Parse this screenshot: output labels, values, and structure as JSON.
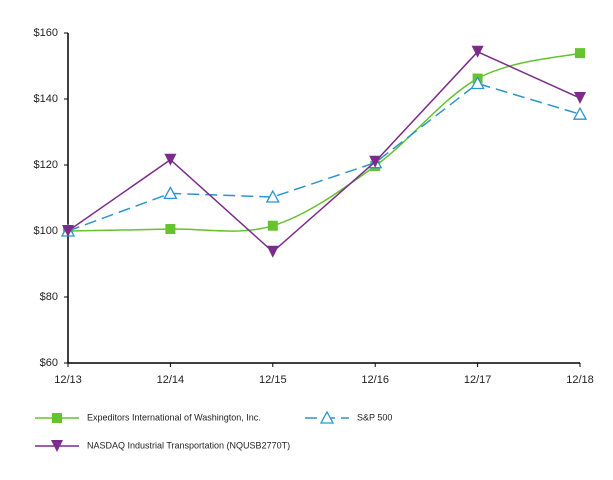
{
  "chart_data": {
    "type": "line",
    "categories": [
      "12/13",
      "12/14",
      "12/15",
      "12/16",
      "12/17",
      "12/18"
    ],
    "ylim": [
      60,
      160
    ],
    "yticks": [
      {
        "value": 60,
        "label": "$60"
      },
      {
        "value": 80,
        "label": "$80"
      },
      {
        "value": 100,
        "label": "$100"
      },
      {
        "value": 120,
        "label": "$120"
      },
      {
        "value": 140,
        "label": "$140"
      },
      {
        "value": 160,
        "label": "$160"
      }
    ],
    "series": [
      {
        "name": "Expeditors International of Washington, Inc.",
        "color": "#66c22e",
        "marker": "square",
        "smooth": true,
        "values": [
          100,
          100.6,
          101.6,
          119.7,
          146.2,
          153.9
        ]
      },
      {
        "name": "S&P 500",
        "color": "#2b95d0",
        "marker": "open-triangle",
        "dashed": true,
        "values": [
          100,
          111.4,
          110.3,
          120.7,
          144.7,
          135.4
        ]
      },
      {
        "name": "NASDAQ Industrial Transportation (NQUSB2770T)",
        "color": "#7b2c8b",
        "marker": "down-triangle",
        "values": [
          100,
          121.6,
          93.7,
          121.0,
          154.3,
          140.3
        ]
      }
    ]
  }
}
